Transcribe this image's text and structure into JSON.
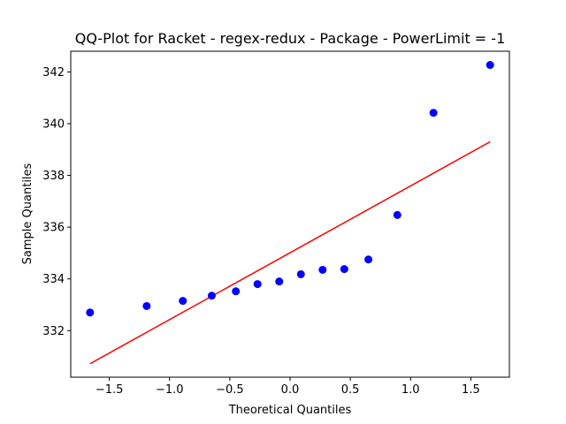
{
  "chart_data": {
    "type": "scatter",
    "title": "QQ-Plot for Racket - regex-redux - Package - PowerLimit = -1",
    "xlabel": "Theoretical Quantiles",
    "ylabel": "Sample Quantiles",
    "xlim": [
      -1.82,
      1.82
    ],
    "ylim": [
      330.2,
      342.8
    ],
    "xticks": [
      -1.5,
      -1.0,
      -0.5,
      0.0,
      0.5,
      1.0,
      1.5
    ],
    "xtick_labels": [
      "−1.5",
      "−1.0",
      "−0.5",
      "0.0",
      "0.5",
      "1.0",
      "1.5"
    ],
    "yticks": [
      332,
      334,
      336,
      338,
      340,
      342
    ],
    "ytick_labels": [
      "332",
      "334",
      "336",
      "338",
      "340",
      "342"
    ],
    "series": [
      {
        "name": "sample",
        "color": "#0000ff",
        "x": [
          -1.66,
          -1.19,
          -0.89,
          -0.65,
          -0.45,
          -0.27,
          -0.09,
          0.09,
          0.27,
          0.45,
          0.65,
          0.89,
          1.19,
          1.66
        ],
        "y": [
          332.7,
          332.95,
          333.15,
          333.35,
          333.52,
          333.8,
          333.9,
          334.18,
          334.35,
          334.38,
          334.75,
          336.47,
          340.42,
          342.27
        ]
      }
    ],
    "fit_line": {
      "color": "#ff0000",
      "x": [
        -1.66,
        1.66
      ],
      "y": [
        330.72,
        339.3
      ]
    }
  }
}
